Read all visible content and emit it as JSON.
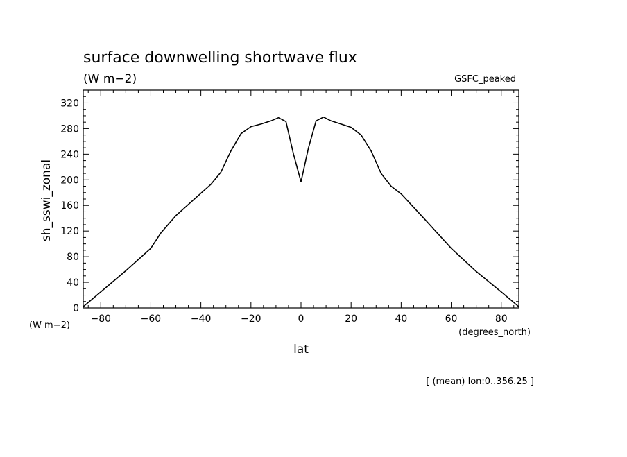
{
  "chart_data": {
    "type": "line",
    "title": "surface downwelling shortwave flux",
    "units": "(W m−2)",
    "dataset": "GSFC_peaked",
    "ylabel": "sh_sswi_zonal",
    "y_units": "(W m−2)",
    "xlabel": "lat",
    "x_units": "(degrees_north)",
    "footnote": "[ (mean) lon:0..356.25 ]",
    "xlim": [
      -87,
      87
    ],
    "ylim": [
      0,
      340
    ],
    "xticks": [
      -80,
      -60,
      -40,
      -20,
      0,
      20,
      40,
      60,
      80
    ],
    "xtick_labels": [
      "−80",
      "−60",
      "−40",
      "−20",
      "0",
      "20",
      "40",
      "60",
      "80"
    ],
    "yticks": [
      0,
      40,
      80,
      120,
      160,
      200,
      240,
      280,
      320
    ],
    "ytick_labels": [
      "0",
      "40",
      "80",
      "120",
      "160",
      "200",
      "240",
      "280",
      "320"
    ],
    "grid": false,
    "color": "#000000",
    "series": [
      {
        "x": [
          -87,
          -80,
          -70,
          -60,
          -56,
          -50,
          -40,
          -36,
          -32,
          -28,
          -24,
          -20,
          -16,
          -12,
          -9,
          -6,
          -3,
          0,
          3,
          6,
          9,
          12,
          16,
          20,
          24,
          28,
          32,
          36,
          40,
          50,
          60,
          70,
          80,
          87
        ],
        "y": [
          2,
          25,
          58,
          93,
          117,
          144,
          179,
          193,
          212,
          245,
          272,
          283,
          287,
          292,
          297,
          291,
          240,
          197,
          250,
          292,
          298,
          292,
          287,
          282,
          270,
          245,
          210,
          190,
          178,
          136,
          93,
          57,
          25,
          2
        ]
      }
    ]
  }
}
